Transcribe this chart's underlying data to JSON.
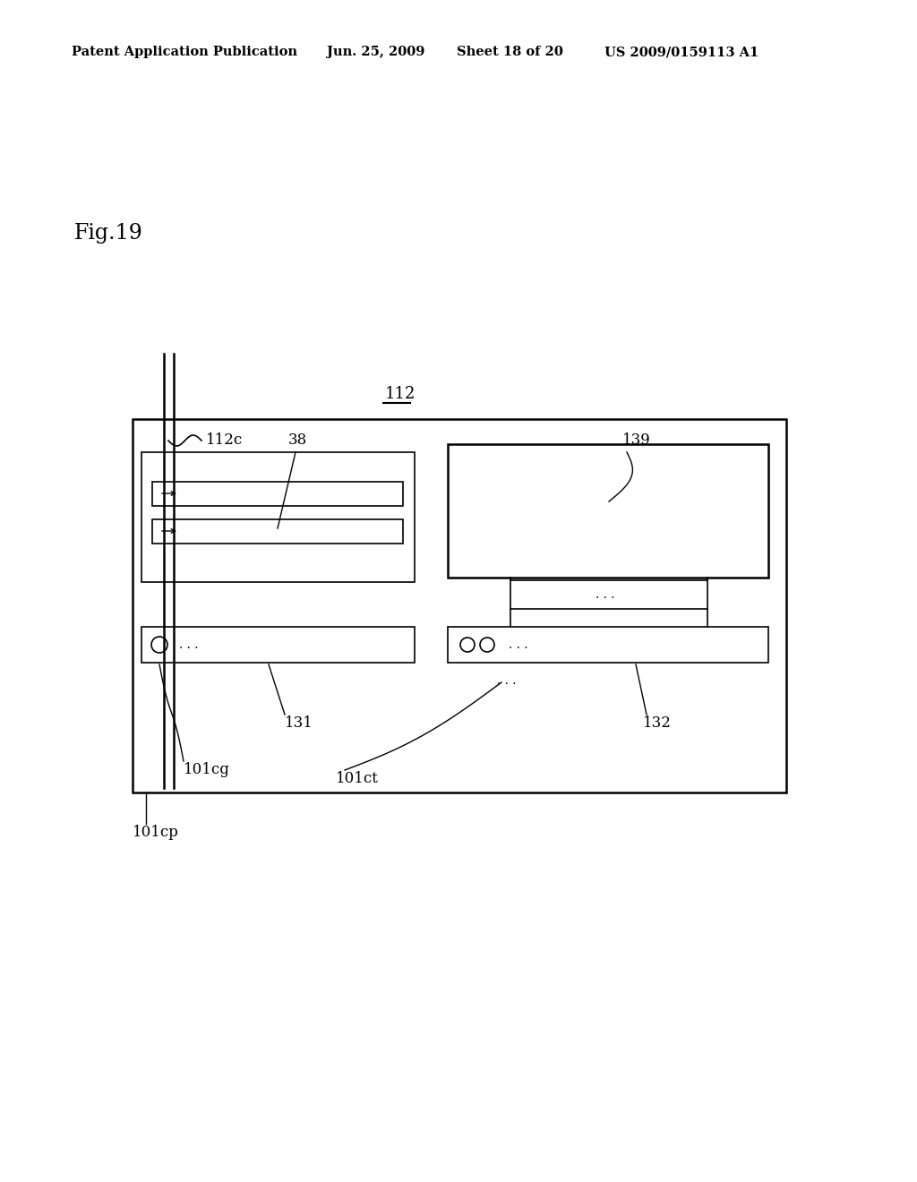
{
  "bg_color": "#ffffff",
  "header_text": "Patent Application Publication",
  "header_date": "Jun. 25, 2009",
  "header_sheet": "Sheet 18 of 20",
  "header_patent": "US 2009/0159113 A1",
  "fig_label": "Fig.19",
  "label_112": "112",
  "label_112c": "112c",
  "label_38": "38",
  "label_139": "139",
  "label_131": "131",
  "label_132": "132",
  "label_101cg": "101cg",
  "label_101ct": "101ct",
  "label_101cp": "101cp"
}
